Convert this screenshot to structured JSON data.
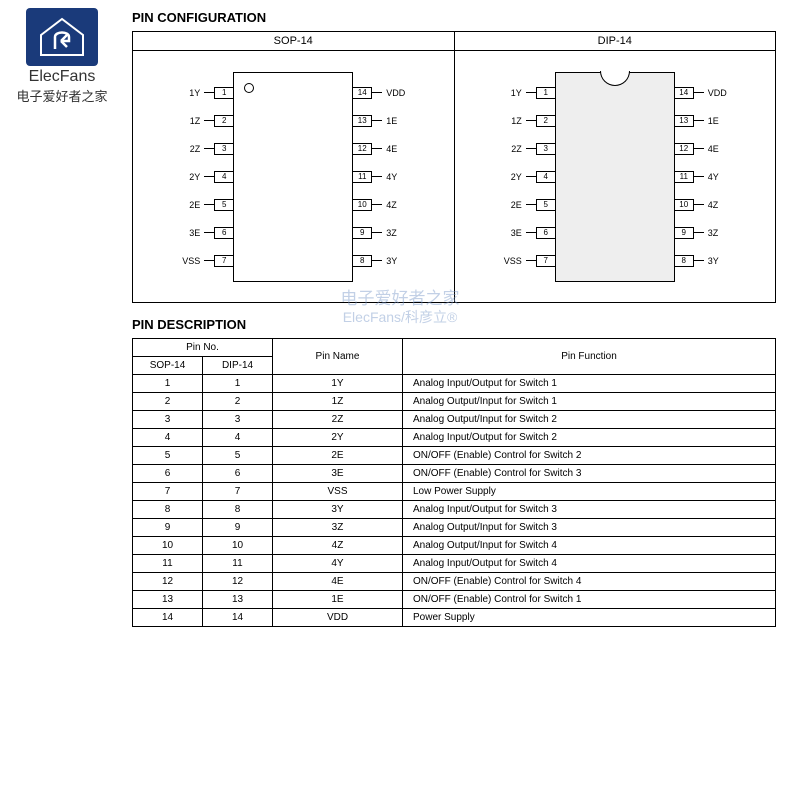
{
  "logo": {
    "brand_en": "ElecFans",
    "brand_cn": "电子爱好者之家"
  },
  "watermark": {
    "line1": "电子爱好者之家",
    "line2": "ElecFans/科彦立®"
  },
  "headings": {
    "config": "PIN CONFIGURATION",
    "desc": "PIN DESCRIPTION"
  },
  "packages": [
    {
      "title": "SOP-14",
      "style": "sop",
      "left": [
        {
          "n": "1",
          "l": "1Y"
        },
        {
          "n": "2",
          "l": "1Z"
        },
        {
          "n": "3",
          "l": "2Z"
        },
        {
          "n": "4",
          "l": "2Y"
        },
        {
          "n": "5",
          "l": "2E"
        },
        {
          "n": "6",
          "l": "3E"
        },
        {
          "n": "7",
          "l": "VSS"
        }
      ],
      "right": [
        {
          "n": "14",
          "l": "VDD"
        },
        {
          "n": "13",
          "l": "1E"
        },
        {
          "n": "12",
          "l": "4E"
        },
        {
          "n": "11",
          "l": "4Y"
        },
        {
          "n": "10",
          "l": "4Z"
        },
        {
          "n": "9",
          "l": "3Z"
        },
        {
          "n": "8",
          "l": "3Y"
        }
      ]
    },
    {
      "title": "DIP-14",
      "style": "dip",
      "left": [
        {
          "n": "1",
          "l": "1Y"
        },
        {
          "n": "2",
          "l": "1Z"
        },
        {
          "n": "3",
          "l": "2Z"
        },
        {
          "n": "4",
          "l": "2Y"
        },
        {
          "n": "5",
          "l": "2E"
        },
        {
          "n": "6",
          "l": "3E"
        },
        {
          "n": "7",
          "l": "VSS"
        }
      ],
      "right": [
        {
          "n": "14",
          "l": "VDD"
        },
        {
          "n": "13",
          "l": "1E"
        },
        {
          "n": "12",
          "l": "4E"
        },
        {
          "n": "11",
          "l": "4Y"
        },
        {
          "n": "10",
          "l": "4Z"
        },
        {
          "n": "9",
          "l": "3Z"
        },
        {
          "n": "8",
          "l": "3Y"
        }
      ]
    }
  ],
  "table": {
    "headers": {
      "pin_no": "Pin No.",
      "sop": "SOP-14",
      "dip": "DIP-14",
      "name": "Pin Name",
      "func": "Pin Function"
    },
    "rows": [
      {
        "sop": "1",
        "dip": "1",
        "name": "1Y",
        "func": "Analog Input/Output for Switch 1"
      },
      {
        "sop": "2",
        "dip": "2",
        "name": "1Z",
        "func": "Analog Output/Input for Switch 1"
      },
      {
        "sop": "3",
        "dip": "3",
        "name": "2Z",
        "func": "Analog Output/Input for Switch 2"
      },
      {
        "sop": "4",
        "dip": "4",
        "name": "2Y",
        "func": "Analog Input/Output for Switch 2"
      },
      {
        "sop": "5",
        "dip": "5",
        "name": "2E",
        "func": "ON/OFF (Enable) Control for Switch 2"
      },
      {
        "sop": "6",
        "dip": "6",
        "name": "3E",
        "func": "ON/OFF (Enable) Control for Switch 3"
      },
      {
        "sop": "7",
        "dip": "7",
        "name": "VSS",
        "func": "Low Power Supply"
      },
      {
        "sop": "8",
        "dip": "8",
        "name": "3Y",
        "func": "Analog Input/Output for Switch 3"
      },
      {
        "sop": "9",
        "dip": "9",
        "name": "3Z",
        "func": "Analog Output/Input for Switch 3"
      },
      {
        "sop": "10",
        "dip": "10",
        "name": "4Z",
        "func": "Analog Output/Input for Switch 4"
      },
      {
        "sop": "11",
        "dip": "11",
        "name": "4Y",
        "func": "Analog Input/Output for Switch 4"
      },
      {
        "sop": "12",
        "dip": "12",
        "name": "4E",
        "func": "ON/OFF (Enable) Control for Switch 4"
      },
      {
        "sop": "13",
        "dip": "13",
        "name": "1E",
        "func": "ON/OFF (Enable) Control for Switch 1"
      },
      {
        "sop": "14",
        "dip": "14",
        "name": "VDD",
        "func": "Power Supply"
      }
    ]
  }
}
